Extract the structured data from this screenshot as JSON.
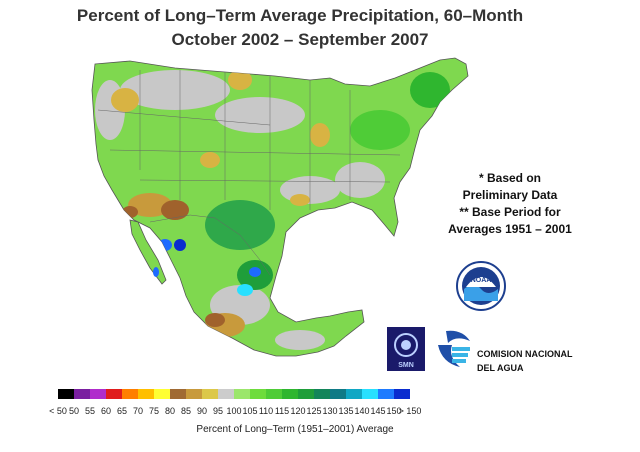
{
  "header": {
    "title_line1": "Percent of Long–Term Average Precipitation, 60–Month",
    "title_line2": "October 2002 – September 2007"
  },
  "notes": {
    "line1": "* Based on",
    "line2": "Preliminary Data",
    "line3": "** Base Period for",
    "line4": "Averages 1951 – 2001"
  },
  "logos": {
    "noaa_text": "NOAA",
    "smn_text": "SMN",
    "conagua_line1": "COMISION NACIONAL",
    "conagua_line2": "DEL AGUA"
  },
  "legend": {
    "labels": [
      "< 50",
      "50",
      "55",
      "60",
      "65",
      "70",
      "75",
      "80",
      "85",
      "90",
      "95",
      "100",
      "105",
      "110",
      "115",
      "120",
      "125",
      "130",
      "135",
      "140",
      "145",
      "150",
      "> 150"
    ],
    "colors": [
      "#000000",
      "#7a1fa0",
      "#b02ccc",
      "#e01c1c",
      "#ff7f00",
      "#ffbf00",
      "#ffff33",
      "#a06a33",
      "#c89a3c",
      "#dcc84a",
      "#cccccc",
      "#9be66b",
      "#6edc3c",
      "#4fcc37",
      "#2fb62f",
      "#1f9e3a",
      "#13855a",
      "#0f7a86",
      "#10a7c4",
      "#28e0ff",
      "#1e7bff",
      "#0a2ccf"
    ],
    "caption": "Percent of Long–Term (1951–2001) Average"
  },
  "colors": {
    "land_base": "#7fd84f",
    "ocean": "#ffffff",
    "grey_near_normal": "#c8c8c8",
    "dry_tan": "#d8b343",
    "dry_brown": "#a0622c",
    "wet_green": "#2fa84a",
    "wet_blue": "#1e6bff",
    "wet_cyan": "#28e0ff"
  }
}
